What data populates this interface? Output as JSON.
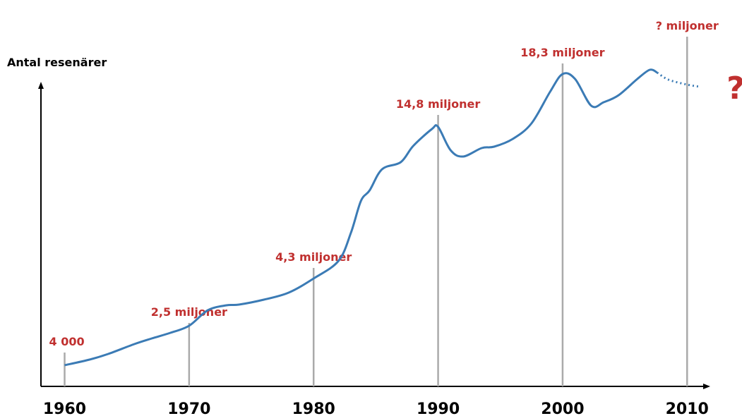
{
  "chart_data": {
    "type": "line",
    "y_label": "Antal resenärer",
    "xlim": [
      1958.1,
      2011.8
    ],
    "ylim": [
      0,
      500
    ],
    "xticks": [
      1960,
      1970,
      1980,
      1990,
      2000,
      2010
    ],
    "line_color": "#3b7bb5",
    "annotation_color": "#c0302f",
    "guide_color": "#aaaaaa",
    "series": [
      {
        "style": "solid",
        "x": [
          1960,
          1962,
          1963.5,
          1965.6,
          1967,
          1968.5,
          1970,
          1971.5,
          1973,
          1974,
          1976,
          1978,
          1980,
          1982,
          1983,
          1983.8,
          1984.5,
          1985.5,
          1987,
          1988,
          1989.5,
          1990,
          1991,
          1992,
          1993.5,
          1994.5,
          1996,
          1997.5,
          1999,
          2000,
          2001,
          2002.3,
          2003.3,
          2004.5,
          2006,
          2007,
          2007.6
        ],
        "values": [
          30,
          38,
          46,
          60,
          68,
          76,
          86,
          108,
          115,
          116,
          123,
          133,
          153,
          178,
          218,
          263,
          278,
          308,
          318,
          341,
          365,
          368,
          335,
          326,
          338,
          340,
          351,
          373,
          418,
          443,
          436,
          398,
          403,
          413,
          436,
          449,
          445
        ]
      },
      {
        "style": "dotted",
        "x": [
          2007.6,
          2008.5,
          2010,
          2011
        ],
        "values": [
          445,
          435,
          428,
          425
        ]
      }
    ],
    "annotations": [
      {
        "x": 1960,
        "label": "4 000",
        "top": 48
      },
      {
        "x": 1970,
        "label": "2,5 miljoner",
        "top": 90
      },
      {
        "x": 1980,
        "label": "4,3 miljoner",
        "top": 168
      },
      {
        "x": 1990,
        "label": "14,8 miljoner",
        "top": 385
      },
      {
        "x": 2000,
        "label": "18,3 miljoner",
        "top": 458
      },
      {
        "x": 2010,
        "label": "? miljoner",
        "top": 496
      }
    ],
    "question_mark": "?"
  }
}
